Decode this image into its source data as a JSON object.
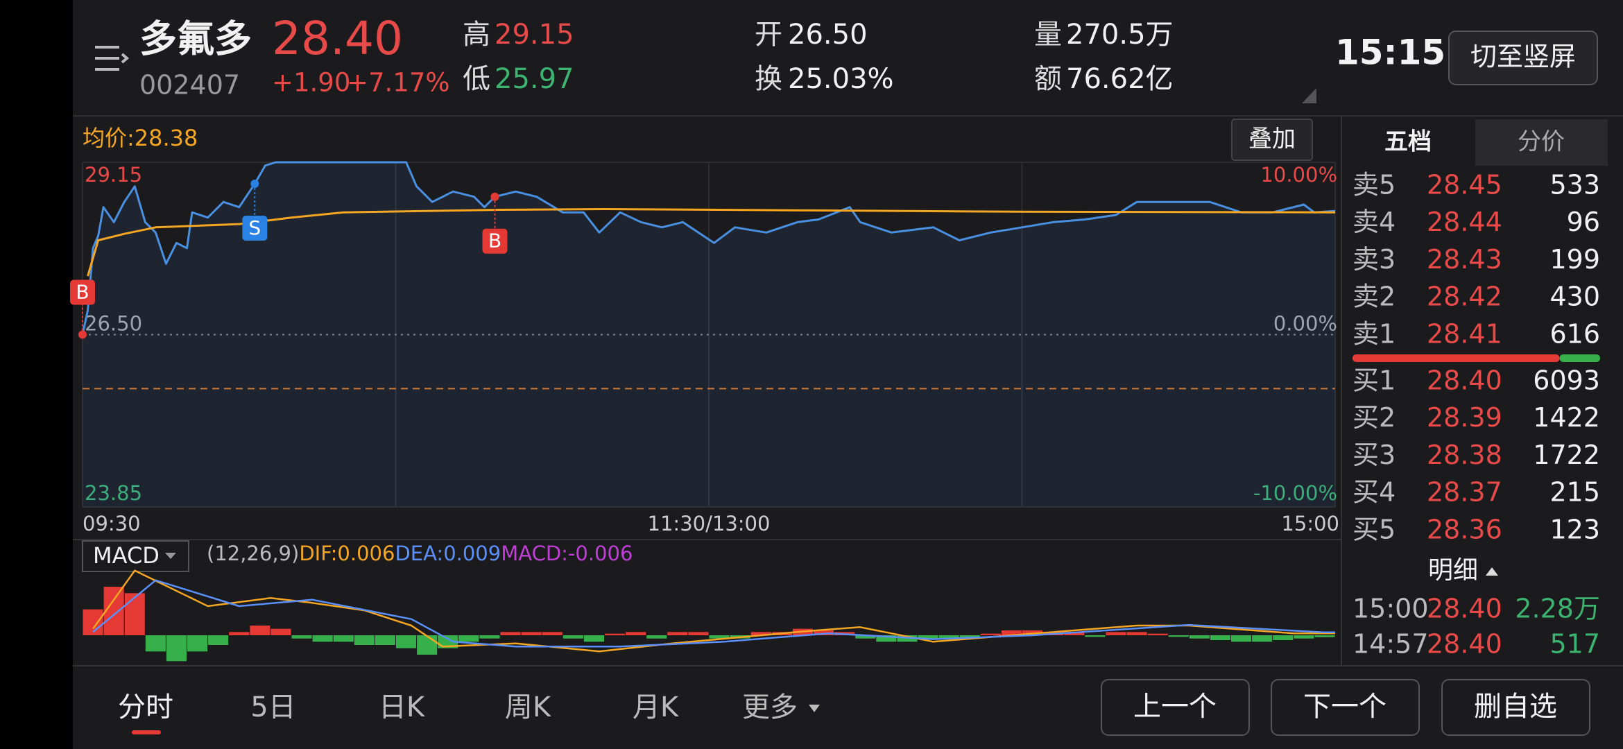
{
  "header": {
    "name": "多氟多",
    "code": "002407",
    "price": "28.40",
    "change": "+1.90",
    "change_pct": "+7.17%",
    "high_label": "高",
    "high": "29.15",
    "low_label": "低",
    "low": "25.97",
    "open_label": "开",
    "open": "26.50",
    "turnover_label": "换",
    "turnover": "25.03%",
    "volume_label": "量",
    "volume": "270.5万",
    "amount_label": "额",
    "amount": "76.62亿",
    "time": "15:15",
    "orientation_button": "切至竖屏"
  },
  "chart_data": [
    {
      "type": "line",
      "label": "均价:28.38",
      "button": "叠加",
      "series": [
        {
          "color": "#4a90e2",
          "x": [
            0,
            1,
            2,
            3,
            4,
            6,
            8,
            10,
            12,
            14,
            16,
            18,
            20,
            21,
            24,
            27,
            30,
            33,
            35,
            37,
            44,
            53,
            62,
            64,
            67,
            71,
            75,
            77,
            79,
            83,
            87,
            92,
            96,
            99,
            103,
            107,
            111,
            115,
            121,
            125,
            131,
            137,
            141,
            147,
            149,
            155,
            163,
            168,
            174,
            180,
            186,
            192,
            198,
            202,
            210,
            216,
            222,
            228,
            234,
            236,
            240
          ],
          "values": [
            26.5,
            26.87,
            27.83,
            28.02,
            28.46,
            28.23,
            28.54,
            28.78,
            28.23,
            28.07,
            27.59,
            27.91,
            27.83,
            28.38,
            28.3,
            28.54,
            28.46,
            28.82,
            29.1,
            29.15,
            29.15,
            29.15,
            29.15,
            28.78,
            28.54,
            28.7,
            28.62,
            28.46,
            28.62,
            28.7,
            28.62,
            28.38,
            28.38,
            28.07,
            28.38,
            28.23,
            28.15,
            28.23,
            27.91,
            28.15,
            28.07,
            28.23,
            28.27,
            28.46,
            28.23,
            28.07,
            28.15,
            27.95,
            28.07,
            28.15,
            28.23,
            28.27,
            28.34,
            28.54,
            28.54,
            28.54,
            28.38,
            28.38,
            28.5,
            28.38,
            28.4
          ]
        },
        {
          "color": "#f5a623",
          "x": [
            1,
            3,
            8,
            14,
            30,
            40,
            50,
            80,
            100,
            140,
            180,
            240
          ],
          "values": [
            27.4,
            27.95,
            28.05,
            28.15,
            28.2,
            28.3,
            28.38,
            28.42,
            28.43,
            28.41,
            28.39,
            28.38
          ]
        }
      ],
      "markers": [
        {
          "label": "B",
          "x": 0,
          "value": 26.5,
          "color": "#e53935"
        },
        {
          "label": "S",
          "x": 33,
          "value": 28.82,
          "color": "#2a82e4"
        },
        {
          "label": "B",
          "x": 79,
          "value": 28.62,
          "color": "#e53935"
        }
      ],
      "reference_line": 25.67,
      "xlim": [
        0,
        240
      ],
      "xticks": [
        0,
        60,
        120,
        180,
        240
      ],
      "x_labels": [
        {
          "value": 0,
          "label": "09:30"
        },
        {
          "value": 120,
          "label": "11:30/13:00"
        },
        {
          "value": 240,
          "label": "15:00"
        }
      ],
      "ylim": [
        23.85,
        29.15
      ],
      "yticks": [
        29.15,
        {
          "value": 26.5,
          "label": "26.50"
        },
        23.85
      ],
      "y2lim": [
        -10,
        10
      ],
      "y2ticks": [
        {
          "value": 10,
          "label": "10.00%"
        },
        {
          "value": 0,
          "label": "0.00%"
        },
        {
          "value": -10,
          "label": "-10.00%"
        }
      ]
    },
    {
      "type": "macd",
      "label": "MACD",
      "params": "(12,26,9)",
      "dif_label": "DIF:0.006",
      "dea_label": "DEA:0.009",
      "macd_label": "MACD:-0.006",
      "xlim": [
        0,
        240
      ],
      "ylim": [
        -0.09,
        0.21
      ],
      "histogram": [
        0.08,
        0.15,
        0.13,
        -0.05,
        -0.08,
        -0.05,
        -0.03,
        0.01,
        0.03,
        0.02,
        -0.01,
        -0.02,
        -0.02,
        -0.03,
        -0.03,
        -0.04,
        -0.06,
        -0.04,
        -0.02,
        -0.01,
        0.01,
        0.01,
        0.01,
        -0.01,
        -0.02,
        0.005,
        0.01,
        -0.01,
        0.01,
        0.01,
        -0.01,
        -0.01,
        0.01,
        0.01,
        0.02,
        0.015,
        0.01,
        -0.01,
        -0.02,
        -0.02,
        -0.01,
        -0.01,
        -0.01,
        0.005,
        0.015,
        0.015,
        0.01,
        0.01,
        -0.005,
        0.01,
        0.01,
        0.005,
        -0.005,
        -0.01,
        -0.015,
        -0.02,
        -0.02,
        -0.015,
        -0.01,
        -0.006
      ],
      "series": [
        {
          "color": "#f5a623",
          "x": [
            2,
            10,
            24,
            36,
            44,
            54,
            63,
            69,
            83,
            99,
            113,
            139,
            149,
            163,
            178,
            202,
            212,
            232,
            240
          ],
          "values": [
            0.02,
            0.2,
            0.09,
            0.115,
            0.1,
            0.077,
            0.03,
            -0.035,
            -0.025,
            -0.05,
            -0.025,
            0.013,
            0.025,
            -0.02,
            0,
            0.03,
            0.03,
            0.006,
            0.006
          ]
        },
        {
          "color": "#5b8ff9",
          "x": [
            2,
            14,
            30,
            44,
            63,
            71,
            83,
            103,
            123,
            143,
            163,
            182,
            212,
            238,
            240
          ],
          "values": [
            0.01,
            0.17,
            0.09,
            0.11,
            0.05,
            -0.02,
            -0.035,
            -0.035,
            -0.02,
            0.006,
            -0.012,
            0,
            0.032,
            0.009,
            0.009
          ]
        }
      ]
    }
  ],
  "order_book": {
    "tabs": [
      "五档",
      "分价"
    ],
    "asks": [
      {
        "label": "卖5",
        "price": "28.45",
        "volume": "533"
      },
      {
        "label": "卖4",
        "price": "28.44",
        "volume": "96"
      },
      {
        "label": "卖3",
        "price": "28.43",
        "volume": "199"
      },
      {
        "label": "卖2",
        "price": "28.42",
        "volume": "430"
      },
      {
        "label": "卖1",
        "price": "28.41",
        "volume": "616"
      }
    ],
    "bids": [
      {
        "label": "买1",
        "price": "28.40",
        "volume": "6093"
      },
      {
        "label": "买2",
        "price": "28.39",
        "volume": "1422"
      },
      {
        "label": "买3",
        "price": "28.38",
        "volume": "1722"
      },
      {
        "label": "买4",
        "price": "28.37",
        "volume": "215"
      },
      {
        "label": "买5",
        "price": "28.36",
        "volume": "123"
      }
    ],
    "detail_label": "明细",
    "trades": [
      {
        "time": "15:00",
        "price": "28.40",
        "volume": "2.28万"
      },
      {
        "time": "14:57",
        "price": "28.40",
        "volume": "517"
      }
    ]
  },
  "bottom": {
    "tabs": [
      "分时",
      "5日",
      "日K",
      "周K",
      "月K",
      "更多"
    ],
    "buttons": [
      "上一个",
      "下一个",
      "删自选"
    ]
  }
}
